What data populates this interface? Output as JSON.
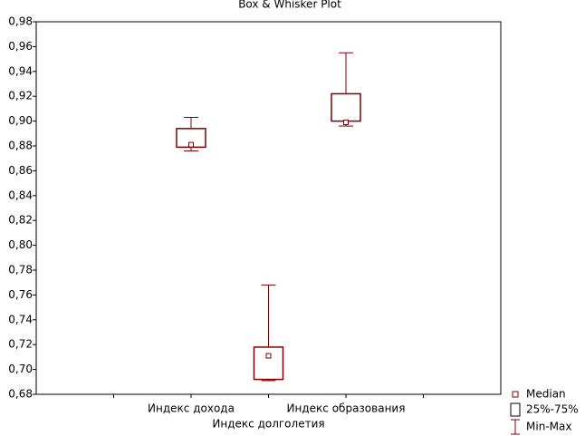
{
  "chart_data": {
    "type": "box",
    "title": "Box & Whisker Plot",
    "categories": [
      "Индекс дохода",
      "Индекс долголетия",
      "Индекс образования"
    ],
    "min": [
      0.876,
      0.691,
      0.896
    ],
    "q1": [
      0.879,
      0.692,
      0.9
    ],
    "median": [
      0.881,
      0.711,
      0.899
    ],
    "q3": [
      0.894,
      0.718,
      0.922
    ],
    "max": [
      0.903,
      0.768,
      0.955
    ],
    "color": "#800000",
    "ylim": [
      0.68,
      0.98
    ],
    "yticks": [
      {
        "value": 0.68,
        "label": "0,68"
      },
      {
        "value": 0.7,
        "label": "0,70"
      },
      {
        "value": 0.72,
        "label": "0,72"
      },
      {
        "value": 0.74,
        "label": "0,74"
      },
      {
        "value": 0.76,
        "label": "0,76"
      },
      {
        "value": 0.78,
        "label": "0,78"
      },
      {
        "value": 0.8,
        "label": "0,80"
      },
      {
        "value": 0.82,
        "label": "0,82"
      },
      {
        "value": 0.84,
        "label": "0,84"
      },
      {
        "value": 0.86,
        "label": "0,86"
      },
      {
        "value": 0.88,
        "label": "0,88"
      },
      {
        "value": 0.9,
        "label": "0,90"
      },
      {
        "value": 0.92,
        "label": "0,92"
      },
      {
        "value": 0.94,
        "label": "0,94"
      },
      {
        "value": 0.96,
        "label": "0,96"
      },
      {
        "value": 0.98,
        "label": "0,98"
      }
    ],
    "legend": [
      "Median",
      "25%-75%",
      "Min-Max"
    ]
  }
}
